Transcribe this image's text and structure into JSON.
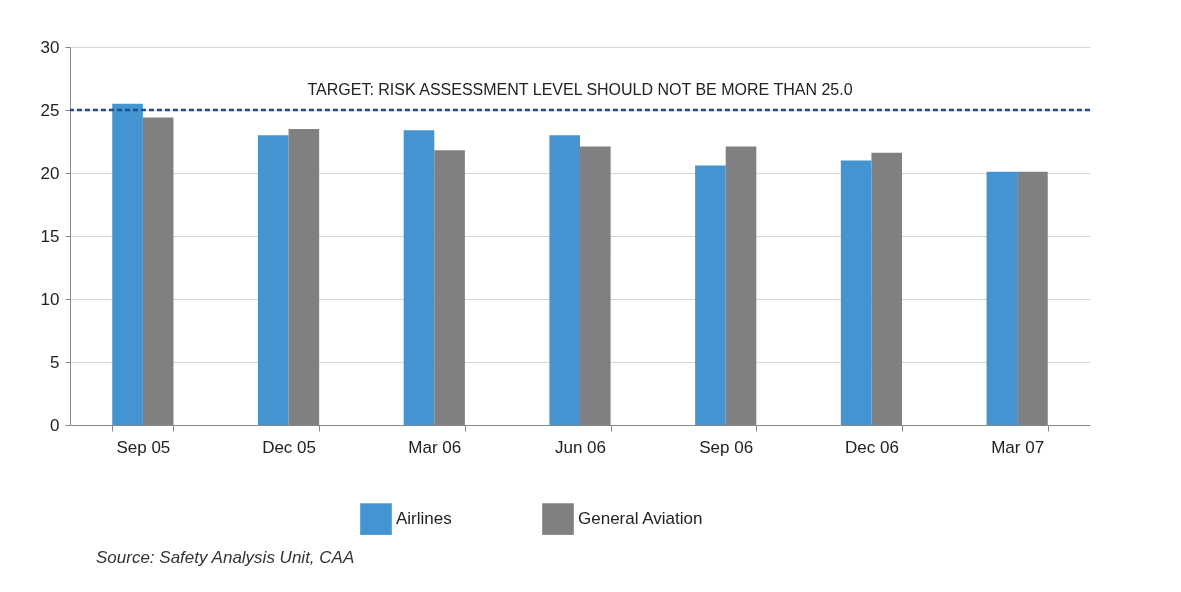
{
  "chart_data": {
    "type": "bar",
    "categories": [
      "Sep 05",
      "Dec 05",
      "Mar 06",
      "Jun 06",
      "Sep 06",
      "Dec 06",
      "Mar 07"
    ],
    "series": [
      {
        "name": "Airlines",
        "color": "#4394d0",
        "values": [
          25.5,
          23.0,
          23.4,
          23.0,
          20.6,
          21.0,
          20.1
        ]
      },
      {
        "name": "General Aviation",
        "color": "#808083",
        "values": [
          24.4,
          23.5,
          21.8,
          22.1,
          22.1,
          21.6,
          20.1
        ]
      }
    ],
    "ylim": [
      0,
      30
    ],
    "yticks": [
      0,
      5,
      10,
      15,
      20,
      25,
      30
    ],
    "grid": "y",
    "legend": "bottom",
    "ref_lines": [
      {
        "axis": "y",
        "value": 25,
        "label": "TARGET: RISK ASSESSMENT LEVEL SHOULD NOT BE MORE THAN 25.0",
        "color": "#1f4e8c",
        "line_style": "dashed"
      }
    ],
    "annotations": [
      "Source: Safety Analysis Unit, CAA"
    ]
  }
}
